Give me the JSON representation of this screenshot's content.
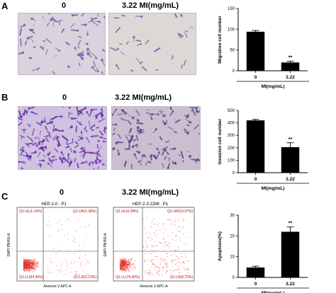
{
  "panels": [
    {
      "letter": "A",
      "left_label": "0",
      "right_label": "3.22 MI(mg/mL)"
    },
    {
      "letter": "B",
      "left_label": "0",
      "right_label": "3.22 MI(mg/mL)"
    },
    {
      "letter": "C",
      "left_label": "0",
      "right_label": "3.22 MI(mg/mL)"
    }
  ],
  "flow_plots": [
    {
      "title": "HEP-2-0 : P1",
      "ylabel": "DAPI PB450-A",
      "xlabel": "Annexin V APC-A",
      "quadrants": {
        "ul": "Q1-UL(1.10%)",
        "ur": "Q1-UR(1.38%)",
        "ll": "Q1-LL(94.39%)",
        "lr": "Q1-LR(3.13%)"
      }
    },
    {
      "title": "HEP-2-3.22MI : P1",
      "ylabel": "DAPI PB450-A",
      "xlabel": "Annexin V APC-A",
      "quadrants": {
        "ul": "Q1-UL(0.28%)",
        "ur": "Q1-UR(10.57%)",
        "ll": "Q1-LL(79.43%)",
        "lr": "Q1-LR(9.72%)"
      }
    }
  ],
  "chart_data": [
    {
      "type": "bar",
      "categories": [
        "0",
        "3.22"
      ],
      "values": [
        94,
        20
      ],
      "errors": [
        3,
        3
      ],
      "ylabel": "Migration cell number",
      "xlabel": "MI(mg/mL)",
      "ylim": [
        0,
        150
      ],
      "yticks": [
        "0",
        "50",
        "100",
        "150"
      ],
      "significance": [
        "",
        "**"
      ]
    },
    {
      "type": "bar",
      "categories": [
        "0",
        "3.22"
      ],
      "values": [
        420,
        205
      ],
      "errors": [
        8,
        35
      ],
      "ylabel": "Invasion cell number",
      "xlabel": "MI(mg/mL)",
      "ylim": [
        0,
        500
      ],
      "yticks": [
        "0",
        "100",
        "200",
        "300",
        "400",
        "500"
      ],
      "significance": [
        "",
        "**"
      ]
    },
    {
      "type": "bar",
      "categories": [
        "0",
        "3.22"
      ],
      "values": [
        4.8,
        22
      ],
      "errors": [
        0.6,
        2.3
      ],
      "ylabel": "Apoptosis(%)",
      "xlabel": "MI(mg/mL)",
      "ylim": [
        0,
        30
      ],
      "yticks": [
        "0",
        "10",
        "20",
        "30"
      ],
      "significance": [
        "",
        "**"
      ]
    }
  ]
}
